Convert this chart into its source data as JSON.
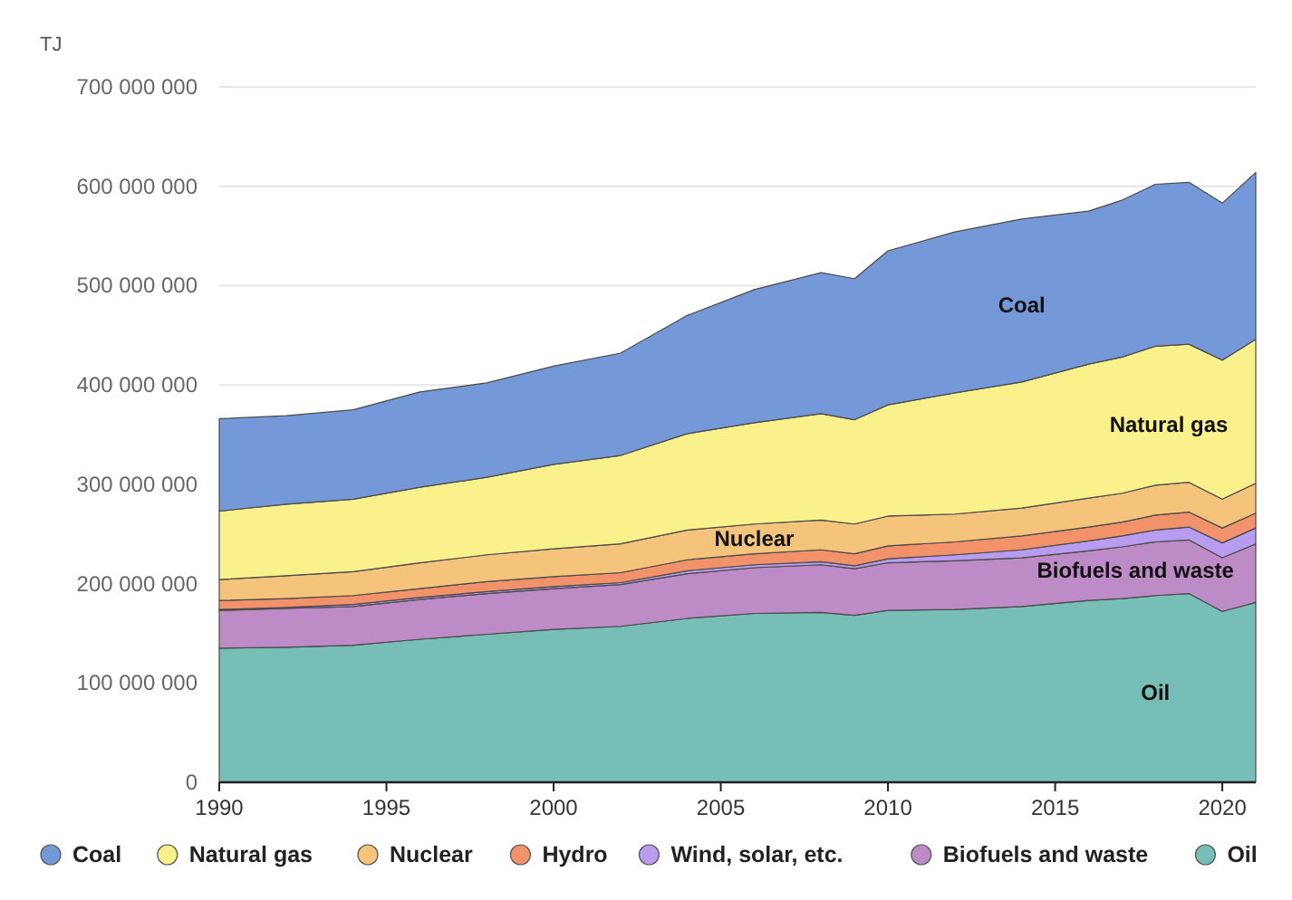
{
  "chart_data": {
    "type": "area",
    "stacked": true,
    "ylabel": "TJ",
    "x": [
      1990,
      1992,
      1994,
      1996,
      1998,
      2000,
      2002,
      2004,
      2006,
      2008,
      2009,
      2010,
      2012,
      2014,
      2016,
      2017,
      2018,
      2019,
      2020,
      2021
    ],
    "series": [
      {
        "name": "Oil",
        "color": "#76beb6",
        "values": [
          135000000,
          136000000,
          138000000,
          144000000,
          149000000,
          154000000,
          157000000,
          165000000,
          170000000,
          171000000,
          168000000,
          173000000,
          174000000,
          177000000,
          183000000,
          185000000,
          188000000,
          190000000,
          172000000,
          181000000
        ]
      },
      {
        "name": "Biofuels and waste",
        "color": "#bd8cc6",
        "values": [
          38000000,
          39000000,
          39000000,
          40000000,
          41000000,
          41000000,
          42000000,
          45000000,
          46000000,
          48000000,
          47000000,
          48000000,
          49000000,
          49000000,
          50000000,
          52000000,
          54000000,
          54000000,
          54000000,
          59000000
        ]
      },
      {
        "name": "Wind, solar, etc.",
        "color": "#b79cf0",
        "values": [
          1000000,
          1000000,
          2000000,
          2000000,
          2000000,
          2000000,
          2000000,
          3000000,
          3000000,
          3000000,
          3000000,
          4000000,
          6000000,
          8000000,
          10000000,
          11000000,
          12000000,
          13000000,
          15000000,
          16000000
        ]
      },
      {
        "name": "Hydro",
        "color": "#f2926a",
        "values": [
          9000000,
          9000000,
          9000000,
          9000000,
          10000000,
          10000000,
          10000000,
          11000000,
          11000000,
          12000000,
          12000000,
          13000000,
          13000000,
          14000000,
          14000000,
          14000000,
          15000000,
          15000000,
          15000000,
          15000000
        ]
      },
      {
        "name": "Nuclear",
        "color": "#f4c47c",
        "values": [
          21000000,
          23000000,
          24000000,
          26000000,
          27000000,
          28000000,
          29000000,
          30000000,
          30000000,
          30000000,
          30000000,
          30000000,
          28000000,
          28000000,
          29000000,
          29000000,
          30000000,
          30000000,
          29000000,
          30000000
        ]
      },
      {
        "name": "Natural gas",
        "color": "#faf08c",
        "values": [
          69000000,
          72000000,
          73000000,
          76000000,
          78000000,
          85000000,
          89000000,
          97000000,
          102000000,
          107000000,
          105000000,
          112000000,
          122000000,
          127000000,
          135000000,
          137000000,
          140000000,
          139000000,
          140000000,
          145000000
        ]
      },
      {
        "name": "Coal",
        "color": "#7599d8",
        "values": [
          93000000,
          89000000,
          90000000,
          96000000,
          95000000,
          99000000,
          103000000,
          119000000,
          134000000,
          142000000,
          142000000,
          155000000,
          162000000,
          164000000,
          154000000,
          158000000,
          163000000,
          163000000,
          158000000,
          168000000
        ]
      }
    ],
    "annotations": [
      "Coal",
      "Natural gas",
      "Nuclear",
      "Biofuels and waste",
      "Oil"
    ],
    "xlim": [
      1990,
      2021
    ],
    "xticks": [
      1990,
      1995,
      2000,
      2005,
      2010,
      2015,
      2020
    ],
    "ylim": [
      0,
      700000000
    ],
    "yticks": [
      0,
      {
        "value": 100000000,
        "label": "100 000 000"
      },
      {
        "value": 200000000,
        "label": "200 000 000"
      },
      {
        "value": 300000000,
        "label": "300 000 000"
      },
      {
        "value": 400000000,
        "label": "400 000 000"
      },
      {
        "value": 500000000,
        "label": "500 000 000"
      },
      {
        "value": 600000000,
        "label": "600 000 000"
      },
      {
        "value": 700000000,
        "label": "700 000 000"
      }
    ],
    "grid": "y",
    "legend": "bottom"
  }
}
